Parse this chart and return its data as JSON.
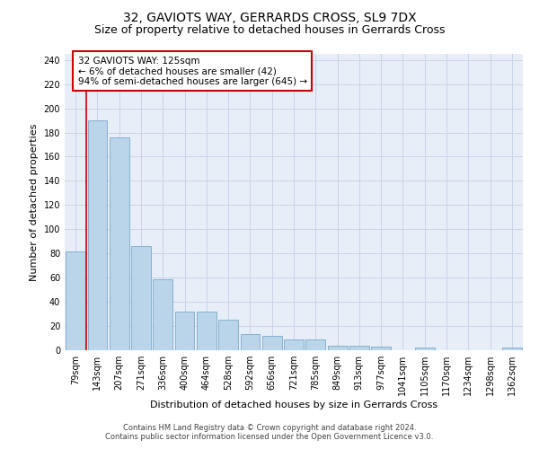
{
  "title1": "32, GAVIOTS WAY, GERRARDS CROSS, SL9 7DX",
  "title2": "Size of property relative to detached houses in Gerrards Cross",
  "xlabel": "Distribution of detached houses by size in Gerrards Cross",
  "ylabel": "Number of detached properties",
  "categories": [
    "79sqm",
    "143sqm",
    "207sqm",
    "271sqm",
    "336sqm",
    "400sqm",
    "464sqm",
    "528sqm",
    "592sqm",
    "656sqm",
    "721sqm",
    "785sqm",
    "849sqm",
    "913sqm",
    "977sqm",
    "1041sqm",
    "1105sqm",
    "1170sqm",
    "1234sqm",
    "1298sqm",
    "1362sqm"
  ],
  "values": [
    82,
    190,
    176,
    86,
    59,
    32,
    32,
    25,
    13,
    12,
    9,
    9,
    4,
    4,
    3,
    0,
    2,
    0,
    0,
    0,
    2
  ],
  "bar_color": "#bad4ea",
  "bar_edge_color": "#7aaac8",
  "annotation_box_text": "32 GAVIOTS WAY: 125sqm\n← 6% of detached houses are smaller (42)\n94% of semi-detached houses are larger (645) →",
  "annotation_box_color": "#ffffff",
  "annotation_box_edge_color": "#cc0000",
  "red_line_x": 0.5,
  "ylim": [
    0,
    245
  ],
  "yticks": [
    0,
    20,
    40,
    60,
    80,
    100,
    120,
    140,
    160,
    180,
    200,
    220,
    240
  ],
  "grid_color": "#c8d4e8",
  "background_color": "#e8eef8",
  "footer1": "Contains HM Land Registry data © Crown copyright and database right 2024.",
  "footer2": "Contains public sector information licensed under the Open Government Licence v3.0.",
  "title_fontsize": 10,
  "subtitle_fontsize": 9,
  "axis_label_fontsize": 8,
  "tick_fontsize": 7,
  "ann_fontsize": 7.5,
  "footer_fontsize": 6
}
